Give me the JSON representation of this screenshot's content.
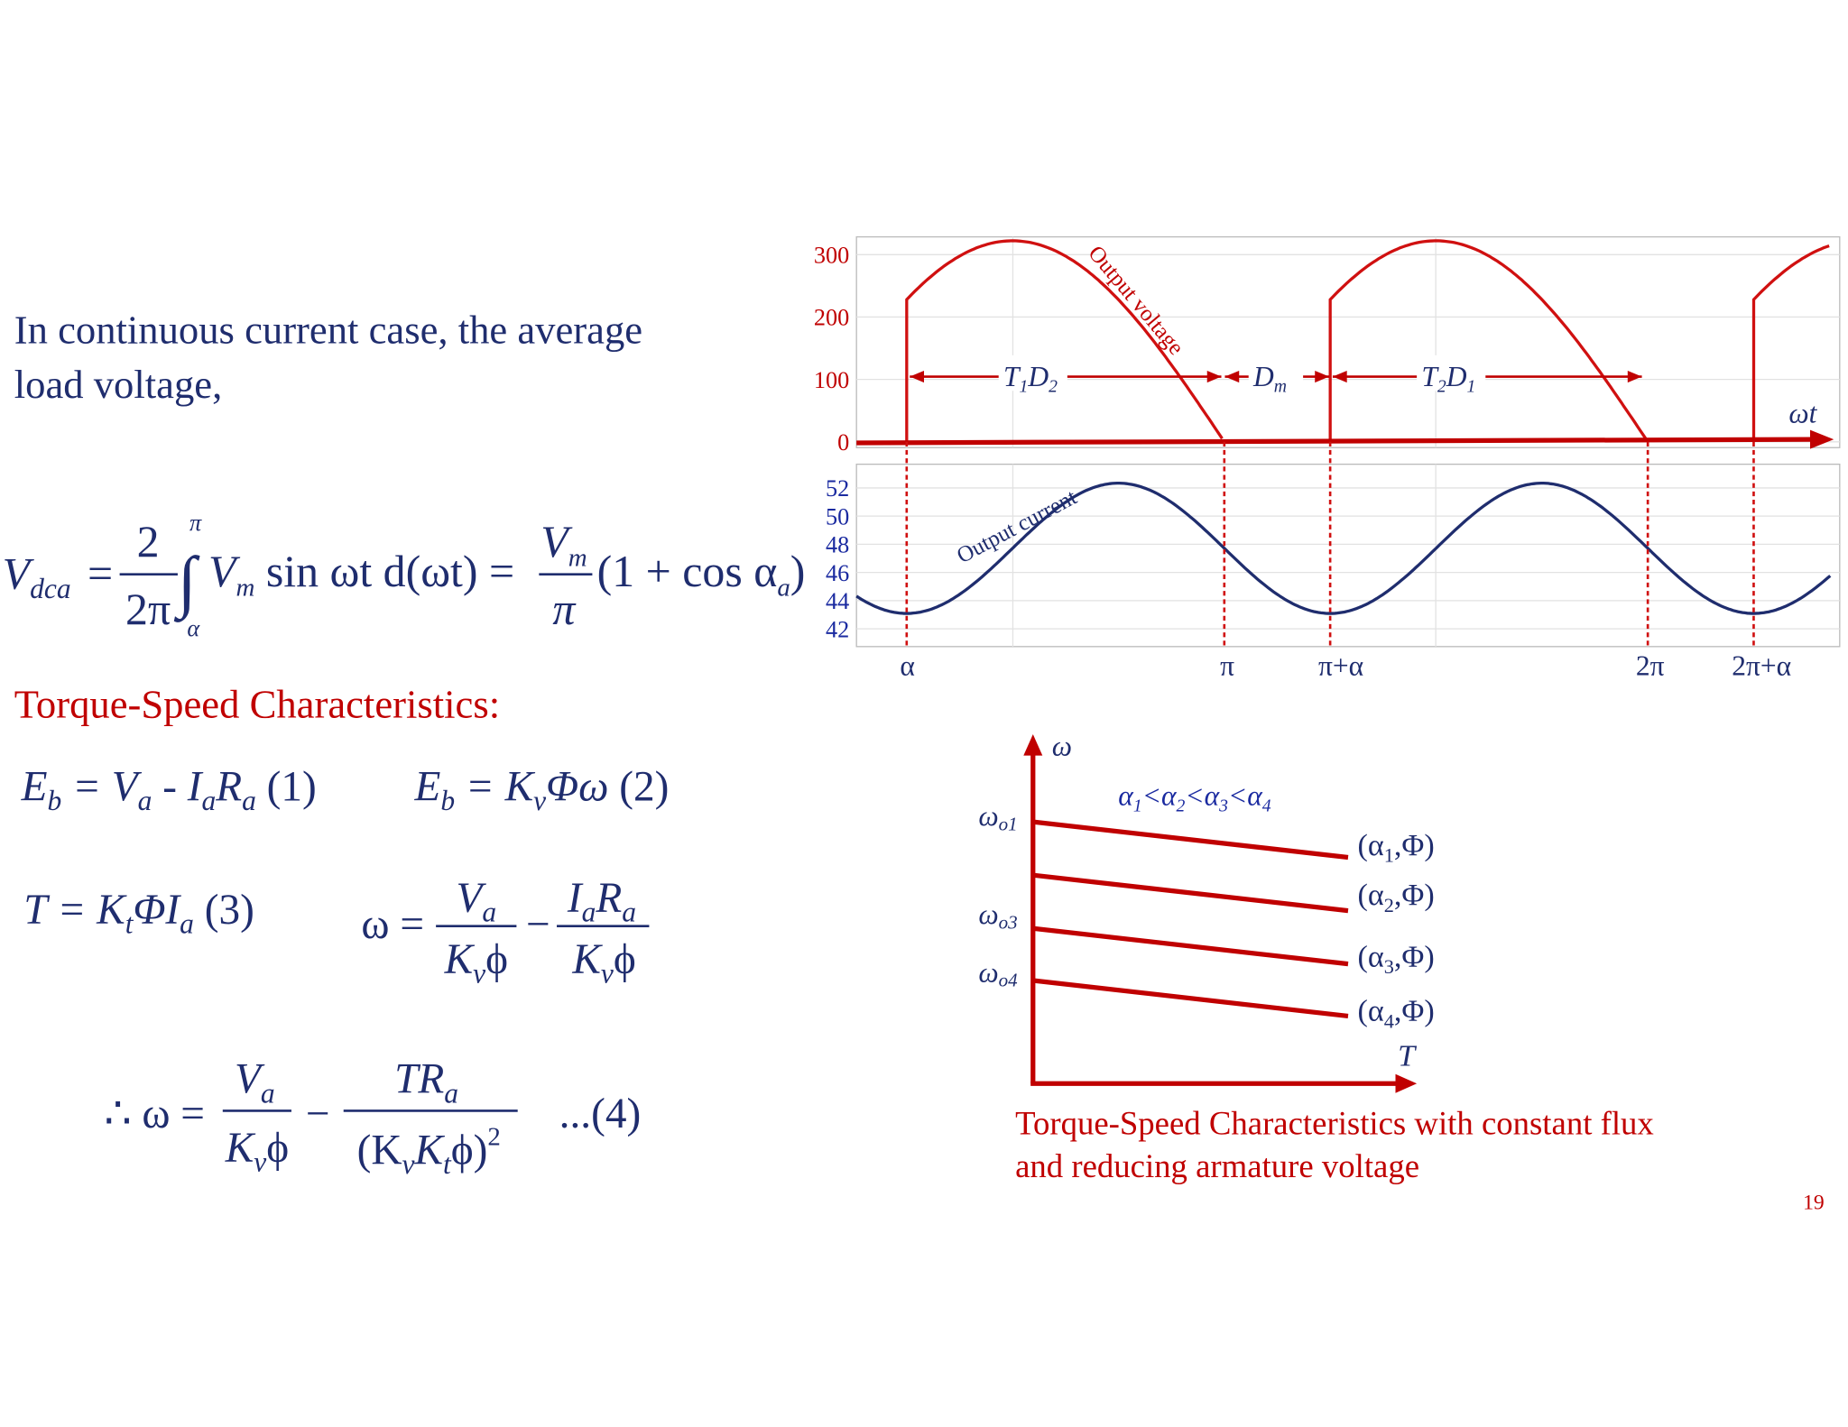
{
  "intro": [
    "In continuous current case,  the average",
    "load voltage,"
  ],
  "average_voltage_equation": {
    "lhs": [
      "V",
      "dca",
      "="
    ],
    "fraction_1": [
      "2",
      "2π"
    ],
    "integral": [
      "∫",
      "π",
      "α"
    ],
    "integrand": [
      "V",
      "m",
      " sin ωt  d(ωt) ="
    ],
    "fraction_2": [
      "V",
      "m",
      "π"
    ],
    "tail": [
      "(1 + cos α",
      "a",
      ")"
    ]
  },
  "heading": "Torque-Speed Characteristics:",
  "equation_1": [
    "E",
    "b",
    " = V",
    "a",
    " - I",
    "a",
    "R",
    "a",
    "   (1)"
  ],
  "equation_2": [
    "E",
    "b",
    " = K",
    "v",
    "Φω",
    "   (2)"
  ],
  "equation_3": [
    "T = K",
    "t",
    "ΦI",
    "a",
    "   (3)"
  ],
  "speed_equation": {
    "lhs": "ω =",
    "numerator_1": [
      "V",
      "a"
    ],
    "denominator_1": [
      "K",
      "v",
      "ϕ"
    ],
    "minus": "−",
    "numerator_2": [
      "I",
      "a",
      "R",
      "a"
    ],
    "denominator_2": [
      "K",
      "v",
      "ϕ"
    ]
  },
  "equation_4": {
    "lhs": "∴ ω =",
    "numerator_1": [
      "V",
      "a"
    ],
    "denominator_1": [
      "K",
      "v",
      "ϕ"
    ],
    "minus": "−",
    "numerator_2": [
      "TR",
      "a"
    ],
    "denominator_2": [
      "(K",
      "v",
      "K",
      "t",
      "ϕ)",
      "2"
    ],
    "label": "...(4)"
  },
  "waveform_plot": {
    "voltage_ticks": [
      "300",
      "200",
      "100",
      "0"
    ],
    "current_ticks": [
      "52",
      "50",
      "48",
      "46",
      "44",
      "42"
    ],
    "x_labels": [
      "α",
      "π",
      "π+α",
      "2π",
      "2π+α"
    ],
    "axis_label": "ωt",
    "voltage_label": "Output voltage",
    "current_label": "Output current",
    "intervals": [
      [
        "T",
        "1",
        "D",
        "2"
      ],
      [
        "D",
        "m"
      ],
      [
        "T",
        "2",
        "D",
        "1"
      ]
    ]
  },
  "torque_speed_plot": {
    "y_axis_label": "ω",
    "x_axis_label": "T",
    "condition": [
      "α",
      "1",
      "<α",
      "2",
      "<α",
      "3",
      "<α",
      "4"
    ],
    "left_labels": [
      [
        "ω",
        "o1"
      ],
      [
        "ω",
        "o3"
      ],
      [
        "ω",
        "o4"
      ]
    ],
    "curve_labels": [
      [
        "(α",
        "1",
        ",Φ)"
      ],
      [
        "(α",
        "2",
        ",Φ)"
      ],
      [
        "(α",
        "3",
        ",Φ)"
      ],
      [
        "(α",
        "4",
        ",Φ)"
      ]
    ],
    "caption": [
      "Torque-Speed Characteristics with constant flux",
      "and reducing armature voltage"
    ]
  },
  "page_number": "19"
}
